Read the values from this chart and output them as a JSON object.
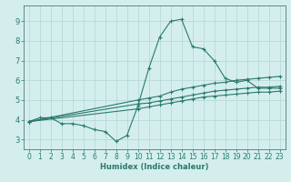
{
  "xlabel": "Humidex (Indice chaleur)",
  "bg_color": "#d4eeee",
  "grid_color": "#b8d8d8",
  "line_color": "#2a7a6a",
  "spine_color": "#507878",
  "xlim": [
    -0.5,
    23.5
  ],
  "ylim": [
    2.5,
    9.8
  ],
  "yticks": [
    3,
    4,
    5,
    6,
    7,
    8,
    9
  ],
  "xticks": [
    0,
    1,
    2,
    3,
    4,
    5,
    6,
    7,
    8,
    9,
    10,
    11,
    12,
    13,
    14,
    15,
    16,
    17,
    18,
    19,
    20,
    21,
    22,
    23
  ],
  "series1_x": [
    0,
    1,
    2,
    3,
    4,
    5,
    6,
    7,
    8,
    9,
    10,
    11,
    12,
    13,
    14,
    15,
    16,
    17,
    18,
    19,
    20,
    21,
    22,
    23
  ],
  "series1_y": [
    3.9,
    4.1,
    4.1,
    3.8,
    3.8,
    3.7,
    3.5,
    3.4,
    2.9,
    3.2,
    4.7,
    6.6,
    8.2,
    9.0,
    9.1,
    7.7,
    7.6,
    7.0,
    6.1,
    5.9,
    6.0,
    5.6,
    5.6,
    5.6
  ],
  "series2_x": [
    0,
    10,
    11,
    12,
    13,
    14,
    15,
    16,
    17,
    18,
    19,
    20,
    21,
    22,
    23
  ],
  "series2_y": [
    3.9,
    5.0,
    5.1,
    5.2,
    5.4,
    5.55,
    5.65,
    5.75,
    5.85,
    5.9,
    6.0,
    6.05,
    6.1,
    6.15,
    6.2
  ],
  "series3_x": [
    0,
    10,
    11,
    12,
    13,
    14,
    15,
    16,
    17,
    18,
    19,
    20,
    21,
    22,
    23
  ],
  "series3_y": [
    3.9,
    4.8,
    4.85,
    4.95,
    5.05,
    5.15,
    5.25,
    5.35,
    5.45,
    5.5,
    5.55,
    5.6,
    5.65,
    5.65,
    5.7
  ],
  "series4_x": [
    0,
    10,
    11,
    12,
    13,
    14,
    15,
    16,
    17,
    18,
    19,
    20,
    21,
    22,
    23
  ],
  "series4_y": [
    3.9,
    4.55,
    4.65,
    4.75,
    4.85,
    4.95,
    5.05,
    5.15,
    5.2,
    5.25,
    5.3,
    5.35,
    5.4,
    5.4,
    5.45
  ],
  "tick_fontsize": 5.5,
  "xlabel_fontsize": 6,
  "marker_size": 2.5,
  "line_width": 0.8
}
